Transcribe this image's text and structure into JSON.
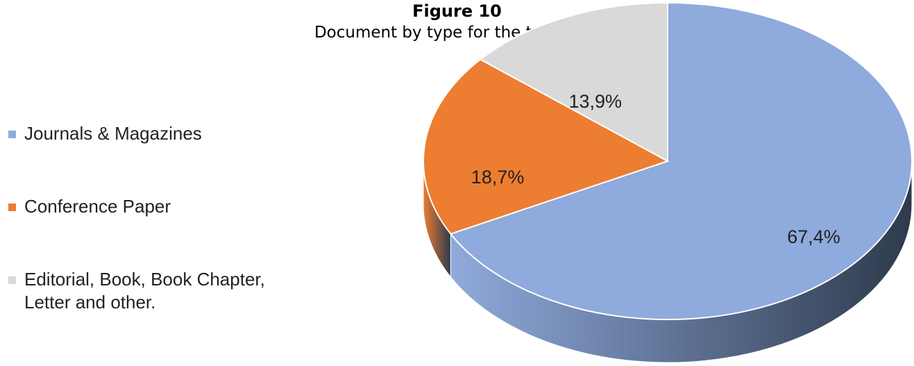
{
  "chart_data": {
    "type": "pie3d",
    "title": "Figure 10",
    "subtitle": "Document by type for the topic FES",
    "categories": [
      "Journals & Magazines",
      "Conference Paper",
      "Editorial, Book, Book Chapter, Letter and other."
    ],
    "values": [
      67.4,
      18.7,
      13.9
    ],
    "value_labels": [
      "67,4%",
      "18,7%",
      "13,9%"
    ],
    "colors": [
      "#8faadc",
      "#ed7d31",
      "#d9d9d9"
    ],
    "legend": "left"
  }
}
